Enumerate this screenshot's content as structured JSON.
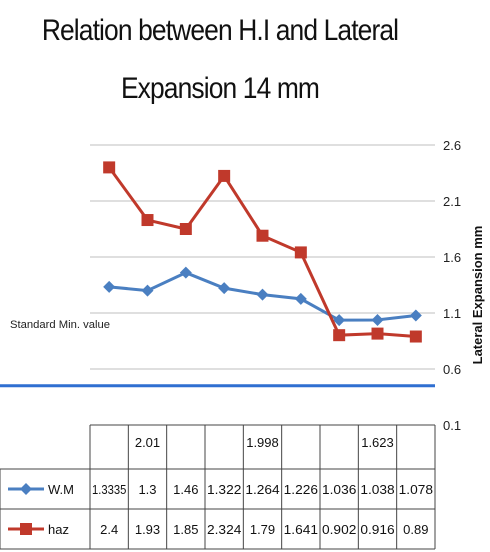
{
  "chart_data": {
    "type": "line",
    "title_lines": [
      "Relation between H.I and Lateral",
      "Expansion 14 mm"
    ],
    "ylabel": "Lateral Expansion   mm",
    "ylim": [
      0.1,
      2.6
    ],
    "y_ticks": [
      "2.6",
      "2.1",
      "1.6",
      "1.1",
      "0.6",
      "0.1"
    ],
    "grid": true,
    "categories": [
      "",
      "2.01",
      "",
      "",
      "1.998",
      "",
      "",
      "1.623",
      ""
    ],
    "series": [
      {
        "name": "W.M",
        "color": "#4a7fc1",
        "marker": "diamond",
        "values": [
          1.3335,
          1.3,
          1.46,
          1.322,
          1.264,
          1.226,
          1.036,
          1.038,
          1.078
        ],
        "labels": [
          "1.3335",
          "1.3",
          "1.46",
          "1.322",
          "1.264",
          "1.226",
          "1.036",
          "1.038",
          "1.078"
        ]
      },
      {
        "name": "haz",
        "color": "#c0392b",
        "marker": "square",
        "values": [
          2.4,
          1.93,
          1.85,
          2.324,
          1.79,
          1.641,
          0.902,
          0.916,
          0.89
        ],
        "labels": [
          "2.4",
          "1.93",
          "1.85",
          "2.324",
          "1.79",
          "1.641",
          "0.902",
          "0.916",
          "0.89"
        ]
      }
    ],
    "reference_line": {
      "label": "Standard Min. value",
      "value": 0.45,
      "color": "#2f6fd1"
    }
  }
}
